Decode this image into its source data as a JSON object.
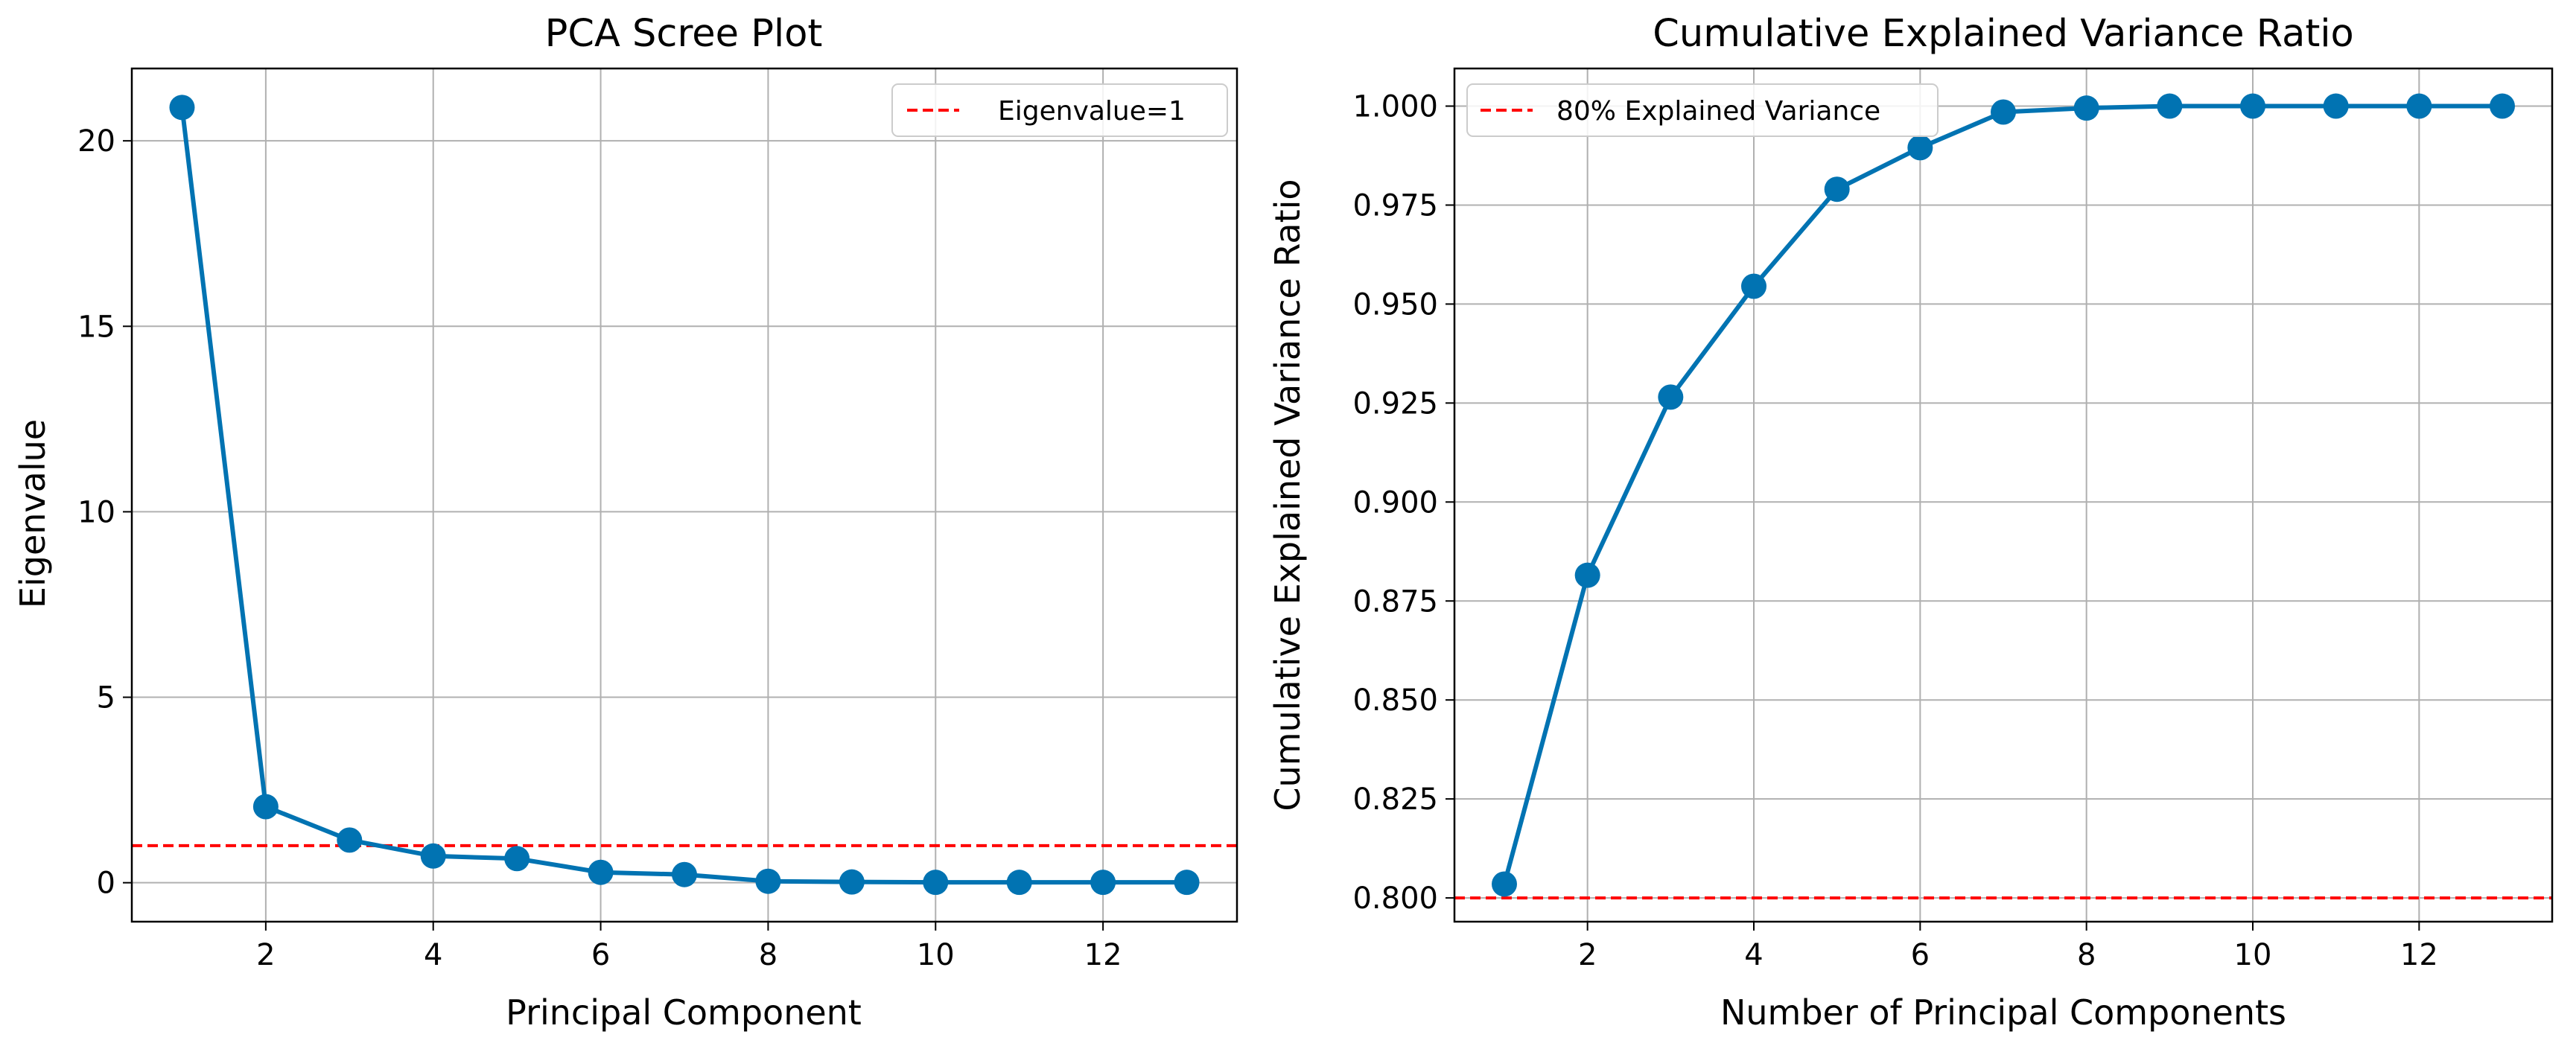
{
  "colors": {
    "series": "#0173b2",
    "reference": "#ff0000",
    "grid": "#b0b0b0",
    "axis": "#000000"
  },
  "chart_data": [
    {
      "type": "line",
      "title": "PCA Scree Plot",
      "xlabel": "Principal Component",
      "ylabel": "Eigenvalue",
      "x": [
        1,
        2,
        3,
        4,
        5,
        6,
        7,
        8,
        9,
        10,
        11,
        12,
        13
      ],
      "series": [
        {
          "values": [
            20.9,
            2.05,
            1.15,
            0.72,
            0.65,
            0.28,
            0.22,
            0.04,
            0.02,
            0.01,
            0.01,
            0.01,
            0.01
          ]
        }
      ],
      "xlim": [
        0.4,
        13.6
      ],
      "ylim": [
        -1.05,
        21.95
      ],
      "xticks": [
        2,
        4,
        6,
        8,
        10,
        12
      ],
      "yticks": [
        0,
        5,
        10,
        15,
        20
      ],
      "tick_decimals": 0,
      "grid": true,
      "reference_line": {
        "y": 1,
        "label": "Eigenvalue=1",
        "style": "dashed"
      },
      "legend_position": "top-right"
    },
    {
      "type": "line",
      "title": "Cumulative Explained Variance Ratio",
      "xlabel": "Number of Principal Components",
      "ylabel": "Cumulative Explained Variance Ratio",
      "x": [
        1,
        2,
        3,
        4,
        5,
        6,
        7,
        8,
        9,
        10,
        11,
        12,
        13
      ],
      "series": [
        {
          "values": [
            0.8035,
            0.8815,
            0.9265,
            0.9545,
            0.979,
            0.9895,
            0.9985,
            0.9995,
            1.0,
            1.0,
            1.0,
            1.0,
            1.0
          ]
        }
      ],
      "xlim": [
        0.4,
        13.6
      ],
      "ylim": [
        0.794,
        1.0095
      ],
      "xticks": [
        2,
        4,
        6,
        8,
        10,
        12
      ],
      "yticks": [
        0.8,
        0.825,
        0.85,
        0.875,
        0.9,
        0.925,
        0.95,
        0.975,
        1.0
      ],
      "tick_decimals": 3,
      "grid": true,
      "reference_line": {
        "y": 0.8,
        "label": "80% Explained Variance",
        "style": "dashed"
      },
      "legend_position": "top-left"
    }
  ]
}
